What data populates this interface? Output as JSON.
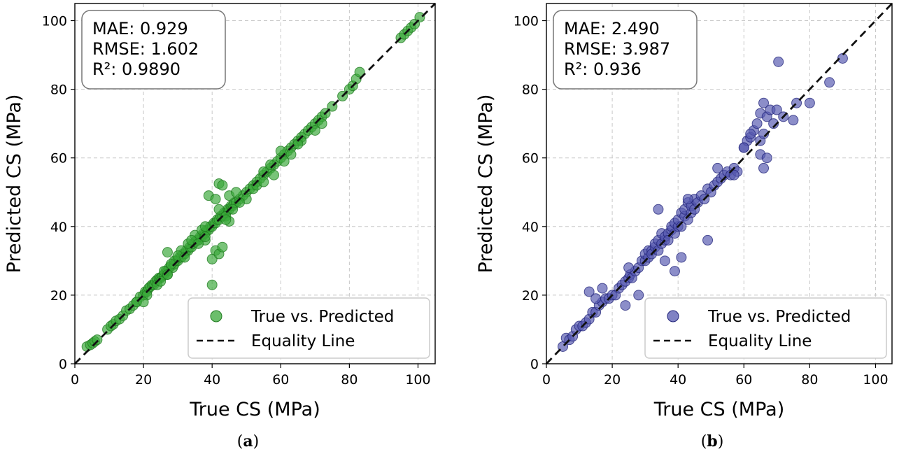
{
  "chart_data": [
    {
      "type": "scatter",
      "panel_label": "a",
      "xlabel": "True CS (MPa)",
      "ylabel": "Predicted CS (MPa)",
      "xlim": [
        0,
        105
      ],
      "ylim": [
        0,
        105
      ],
      "xticks": [
        0,
        20,
        40,
        60,
        80,
        100
      ],
      "yticks": [
        0,
        20,
        40,
        60,
        80,
        100
      ],
      "grid": true,
      "stats": {
        "mae": "MAE: 0.929",
        "rmse": "RMSE: 1.602",
        "r2": "R²: 0.9890"
      },
      "legend": {
        "scatter": "True vs. Predicted",
        "line": "Equality Line",
        "position": "lower-right"
      },
      "colors": {
        "point_fill": "#3aa83a",
        "point_edge": "#1e7a1e",
        "line": "#111111"
      },
      "series": [
        {
          "name": "True vs. Predicted",
          "x": [
            3.5,
            4.5,
            5.2,
            5.8,
            6.5,
            9.5,
            10.5,
            11.2,
            12,
            13,
            14,
            15,
            16,
            17,
            18,
            19,
            20,
            20.5,
            21,
            21.5,
            22,
            22.5,
            23,
            23.5,
            24,
            24.5,
            25,
            25.5,
            26,
            26.5,
            27,
            27.5,
            28,
            28.5,
            29,
            29.5,
            30,
            30.5,
            31,
            31.5,
            32,
            32.5,
            33,
            33.5,
            34,
            34.5,
            35,
            35.5,
            36,
            36.5,
            37,
            37.5,
            38,
            38.5,
            39,
            39.5,
            40,
            40.5,
            41,
            41.5,
            42,
            42.5,
            43,
            43.5,
            44,
            44.5,
            45,
            45.5,
            46,
            46.5,
            47,
            48,
            49,
            50,
            51,
            52,
            53,
            54,
            55,
            56,
            57,
            58,
            59,
            60,
            61,
            62,
            63,
            64,
            65,
            66,
            67,
            68,
            69,
            70,
            71,
            72,
            73,
            75,
            78,
            80,
            81,
            82,
            83,
            95,
            96,
            97,
            98,
            99,
            100.5,
            18,
            21,
            24,
            27,
            27,
            29,
            31,
            33,
            35,
            37,
            38,
            39,
            40,
            40,
            41,
            41,
            42,
            42,
            42,
            43,
            43,
            44,
            45,
            45,
            47,
            50,
            52,
            55,
            57,
            60,
            63,
            66,
            70,
            25,
            26,
            28,
            30,
            32,
            34,
            36,
            38,
            44,
            48,
            53,
            58,
            61,
            65,
            72,
            20,
            27,
            38,
            46,
            55
          ],
          "y": [
            5,
            5.5,
            6,
            6.5,
            7,
            10,
            11,
            11.5,
            12.5,
            13,
            14,
            15.5,
            16,
            17,
            18,
            19.5,
            20,
            21,
            21,
            22,
            22.5,
            23,
            23,
            24,
            24.5,
            25,
            25,
            25.5,
            26,
            27,
            27,
            28,
            28.5,
            28,
            29,
            30,
            30,
            31,
            31,
            32,
            32,
            33,
            33,
            34,
            34,
            35,
            35.5,
            36,
            36,
            37,
            37,
            38,
            38,
            39,
            39,
            40,
            40,
            41,
            41,
            42,
            42,
            43,
            43,
            44,
            44,
            45,
            45,
            46,
            46,
            47,
            47,
            48,
            49,
            50,
            51,
            52,
            53,
            54,
            55,
            56,
            57,
            58,
            59,
            60,
            61,
            62,
            63,
            64,
            65,
            66,
            67,
            68,
            69,
            70,
            71,
            72,
            73,
            75,
            78,
            80,
            81,
            83,
            85,
            95,
            96,
            97,
            98,
            99,
            101,
            18,
            20,
            23,
            32.5,
            26,
            30,
            33,
            35,
            37.5,
            39,
            36,
            49,
            30.5,
            23,
            48,
            33,
            52.5,
            45,
            32,
            52,
            34,
            43,
            41.5,
            49,
            50,
            48,
            51,
            56,
            58,
            62,
            61,
            65,
            68,
            24,
            27,
            29,
            31.5,
            31,
            36,
            35,
            40,
            42,
            47,
            52,
            55,
            59,
            64,
            70,
            18,
            26,
            37,
            45,
            53
          ]
        }
      ]
    },
    {
      "type": "scatter",
      "panel_label": "b",
      "xlabel": "True CS (MPa)",
      "ylabel": "Predicted CS (MPa)",
      "xlim": [
        0,
        105
      ],
      "ylim": [
        0,
        105
      ],
      "xticks": [
        0,
        20,
        40,
        60,
        80,
        100
      ],
      "yticks": [
        0,
        20,
        40,
        60,
        80,
        100
      ],
      "grid": true,
      "stats": {
        "mae": "MAE: 2.490",
        "rmse": "RMSE: 3.987",
        "r2": "R²: 0.936"
      },
      "legend": {
        "scatter": "True vs. Predicted",
        "line": "Equality Line",
        "position": "lower-right"
      },
      "colors": {
        "point_fill": "#5558b0",
        "point_edge": "#22247a",
        "line": "#111111"
      },
      "series": [
        {
          "name": "True vs. Predicted",
          "x": [
            5,
            6,
            7,
            8,
            9,
            10,
            11,
            12,
            13,
            14,
            15,
            16,
            17,
            18,
            19,
            20,
            21,
            22,
            23,
            24,
            25,
            25.5,
            26,
            27,
            28,
            29,
            30,
            30,
            31,
            31,
            32,
            32,
            33,
            33,
            34,
            34,
            35,
            35,
            36,
            36,
            37,
            37,
            38,
            38,
            39,
            39,
            40,
            40,
            41,
            41,
            42,
            42,
            43,
            43,
            44,
            44,
            45,
            45,
            46,
            47,
            48,
            49,
            50,
            51,
            52,
            53,
            54,
            55,
            56,
            57,
            58,
            60,
            61,
            62,
            63,
            64,
            65,
            65,
            66,
            66,
            67,
            68,
            69,
            70,
            70.5,
            72,
            75,
            76,
            80,
            86,
            90,
            13,
            15,
            17,
            24,
            25,
            28,
            34,
            36,
            39,
            41,
            43,
            49,
            52,
            57,
            60,
            62,
            65,
            66,
            67
          ],
          "y": [
            5,
            7.5,
            7,
            8,
            10,
            11,
            11,
            12,
            13,
            15,
            15,
            17,
            18,
            19,
            19,
            20,
            20,
            22,
            23,
            24,
            25,
            26,
            25,
            27,
            28,
            30,
            30,
            32,
            31,
            33,
            33,
            32,
            34,
            35,
            33,
            36,
            35,
            38,
            36,
            37,
            38,
            36,
            39,
            40,
            38,
            41,
            40,
            42,
            40,
            44,
            43,
            45,
            42,
            47,
            44,
            46,
            45,
            48,
            47,
            49,
            48,
            51,
            50,
            52,
            53,
            54,
            55,
            56,
            55,
            57,
            56,
            63,
            65,
            66,
            68,
            70,
            65,
            73,
            67,
            76,
            72,
            74,
            70,
            74,
            88,
            72,
            71,
            76,
            76,
            82,
            89,
            21,
            19,
            22,
            17,
            28,
            20,
            45,
            30,
            27,
            31,
            48,
            36,
            57,
            55,
            63,
            67,
            61,
            57,
            60
          ]
        }
      ]
    }
  ]
}
